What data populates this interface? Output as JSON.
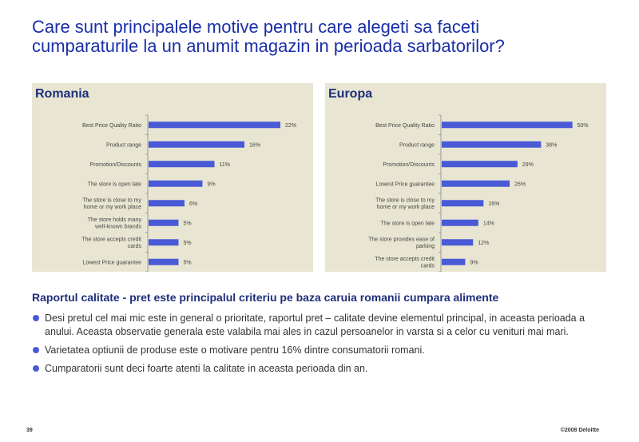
{
  "title": {
    "line1": "Care sunt principalele motive pentru care alegeti sa faceti",
    "line2": "cumparaturile la un anumit magazin in perioada sarbatorilor?"
  },
  "chart_data": [
    {
      "type": "bar",
      "orientation": "horizontal",
      "title": "Romania",
      "categories": [
        "Best Price Quality Ratio",
        "Product range",
        "Promotion/Discounts",
        "The store is open late",
        "The store is close to my home or my work place",
        "The store holds many well-known brands",
        "The store accepts credit cards",
        "Lowest Price guarantee"
      ],
      "values": [
        22,
        16,
        11,
        9,
        6,
        5,
        5,
        5
      ],
      "value_labels": [
        "22%",
        "16%",
        "11%",
        "9%",
        "6%",
        "5%",
        "5%",
        "5%"
      ],
      "xlim": [
        0,
        24
      ],
      "bar_color": "#4a5ad6",
      "background": "#e8e6d2"
    },
    {
      "type": "bar",
      "orientation": "horizontal",
      "title": "Europa",
      "categories": [
        "Best Price Quality Ratio",
        "Product range",
        "Promotion/Discounts",
        "Lowest Price guarantee",
        "The store is close to my home or my work place",
        "The store is open late",
        "The store provides ease of parking",
        "The store accepts credit cards"
      ],
      "values": [
        50,
        38,
        29,
        26,
        16,
        14,
        12,
        9
      ],
      "value_labels": [
        "50%",
        "38%",
        "29%",
        "26%",
        "16%",
        "14%",
        "12%",
        "9%"
      ],
      "xlim": [
        0,
        55
      ],
      "bar_color": "#4a5ad6",
      "background": "#e8e6d2"
    }
  ],
  "body": {
    "heading": "Raportul calitate - pret este principalul criteriu pe baza caruia romanii cumpara alimente",
    "bullets": [
      "Desi pretul cel mai mic este in general o prioritate, raportul pret – calitate devine elementul principal, in aceasta perioada a anului. Aceasta observatie generala este valabila mai ales in cazul persoanelor in varsta si a celor cu venituri mai mari.",
      "Varietatea optiunii de produse este o motivare pentru 16% dintre consumatorii romani.",
      "Cumparatorii sunt deci foarte atenti la calitate in aceasta perioada din an."
    ]
  },
  "footer": {
    "page_number": "39",
    "copyright": "©2008 Deloitte"
  }
}
